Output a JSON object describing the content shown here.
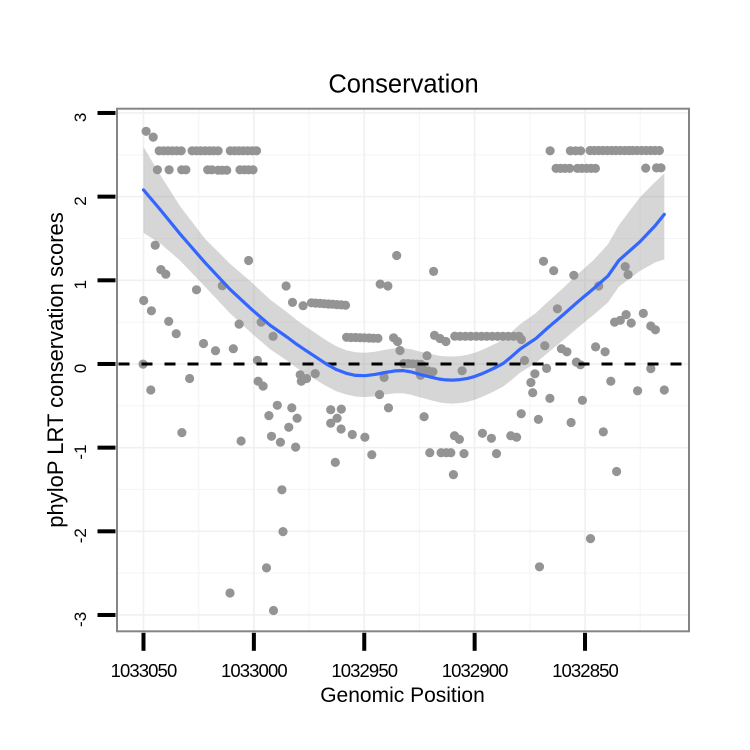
{
  "chart_data": {
    "type": "scatter",
    "title": "Conservation",
    "xlabel": "Genomic Position",
    "ylabel": "phyloP LRT conservation scores",
    "x_ticks": [
      1033050,
      1033000,
      1032950,
      1032900,
      1032850
    ],
    "y_ticks": [
      -3,
      -2,
      -1,
      0,
      1,
      2,
      3
    ],
    "x_minor": [
      1033025,
      1032975,
      1032925,
      1032875,
      1032825
    ],
    "y_minor": [
      -2.5,
      -1.5,
      -0.5,
      0.5,
      1.5,
      2.5
    ],
    "x_range": [
      1033062.0,
      1032802.9
    ],
    "y_range": [
      3.051,
      -3.195
    ],
    "x_axis_reversed": true,
    "legend": "none",
    "grid": "major+minor",
    "reference_line_y": 0,
    "points": [
      [
        1033048.8,
        2.781
      ],
      [
        1033045.6,
        2.711
      ],
      [
        1033042.9,
        2.548
      ],
      [
        1033040.9,
        2.548
      ],
      [
        1033038.9,
        2.548
      ],
      [
        1033036.9,
        2.548
      ],
      [
        1033034.9,
        2.548
      ],
      [
        1033032.9,
        2.548
      ],
      [
        1033028.0,
        2.548
      ],
      [
        1033026.0,
        2.548
      ],
      [
        1033024.1,
        2.548
      ],
      [
        1033022.1,
        2.548
      ],
      [
        1033020.1,
        2.548
      ],
      [
        1033018.2,
        2.548
      ],
      [
        1033016.2,
        2.548
      ],
      [
        1033010.7,
        2.548
      ],
      [
        1033008.7,
        2.548
      ],
      [
        1033006.8,
        2.548
      ],
      [
        1033004.8,
        2.548
      ],
      [
        1033002.8,
        2.548
      ],
      [
        1033000.8,
        2.548
      ],
      [
        1032998.8,
        2.548
      ],
      [
        1032865.8,
        2.548
      ],
      [
        1032856.6,
        2.548
      ],
      [
        1032854.3,
        2.548
      ],
      [
        1032852.0,
        2.548
      ],
      [
        1032847.7,
        2.552
      ],
      [
        1032845.8,
        2.552
      ],
      [
        1032843.8,
        2.552
      ],
      [
        1032841.9,
        2.552
      ],
      [
        1032839.9,
        2.552
      ],
      [
        1032837.9,
        2.552
      ],
      [
        1032836.0,
        2.552
      ],
      [
        1032834.0,
        2.552
      ],
      [
        1032832.0,
        2.552
      ],
      [
        1032830.1,
        2.552
      ],
      [
        1032828.5,
        2.552
      ],
      [
        1032826.5,
        2.552
      ],
      [
        1032824.4,
        2.552
      ],
      [
        1032822.4,
        2.552
      ],
      [
        1032820.3,
        2.552
      ],
      [
        1032818.3,
        2.552
      ],
      [
        1032816.3,
        2.552
      ],
      [
        1033043.7,
        2.321
      ],
      [
        1033038.4,
        2.321
      ],
      [
        1033032.7,
        2.321
      ],
      [
        1033030.8,
        2.321
      ],
      [
        1033020.9,
        2.321
      ],
      [
        1033019.0,
        2.321
      ],
      [
        1033016.2,
        2.316
      ],
      [
        1033014.3,
        2.316
      ],
      [
        1033012.3,
        2.316
      ],
      [
        1033006.3,
        2.321
      ],
      [
        1033004.3,
        2.321
      ],
      [
        1033002.4,
        2.321
      ],
      [
        1033000.4,
        2.321
      ],
      [
        1032863.1,
        2.337
      ],
      [
        1032861.1,
        2.337
      ],
      [
        1032859.1,
        2.337
      ],
      [
        1032857.0,
        2.337
      ],
      [
        1032853.4,
        2.337
      ],
      [
        1032851.4,
        2.337
      ],
      [
        1032849.3,
        2.337
      ],
      [
        1032847.3,
        2.337
      ],
      [
        1032845.3,
        2.337
      ],
      [
        1032822.5,
        2.341
      ],
      [
        1032817.6,
        2.344
      ],
      [
        1032815.6,
        2.344
      ],
      [
        1033044.7,
        1.419
      ],
      [
        1033002.4,
        1.237
      ],
      [
        1032935.3,
        1.297
      ],
      [
        1032868.8,
        1.227
      ],
      [
        1032831.8,
        1.164
      ],
      [
        1032830.5,
        1.068
      ],
      [
        1032918.6,
        1.106
      ],
      [
        1032864.2,
        1.115
      ],
      [
        1032855.1,
        1.06
      ],
      [
        1033042.1,
        1.128
      ],
      [
        1033039.9,
        1.073
      ],
      [
        1033026.0,
        0.887
      ],
      [
        1033014.3,
        0.936
      ],
      [
        1032843.8,
        0.932
      ],
      [
        1033049.9,
        0.759
      ],
      [
        1033046.4,
        0.636
      ],
      [
        1033038.6,
        0.509
      ],
      [
        1033035.2,
        0.362
      ],
      [
        1033006.7,
        0.477
      ],
      [
        1032996.7,
        0.5
      ],
      [
        1032991.3,
        0.329
      ],
      [
        1032985.4,
        0.932
      ],
      [
        1032982.5,
        0.736
      ],
      [
        1032977.7,
        0.696
      ],
      [
        1032973.9,
        0.731
      ],
      [
        1032972.0,
        0.728
      ],
      [
        1032970.0,
        0.724
      ],
      [
        1032968.1,
        0.721
      ],
      [
        1032966.2,
        0.717
      ],
      [
        1032964.3,
        0.714
      ],
      [
        1032962.4,
        0.71
      ],
      [
        1032960.4,
        0.706
      ],
      [
        1032958.5,
        0.703
      ],
      [
        1032942.8,
        0.955
      ],
      [
        1032939.3,
        0.932
      ],
      [
        1032862.5,
        0.659
      ],
      [
        1032836.6,
        0.5
      ],
      [
        1032834.0,
        0.522
      ],
      [
        1032831.4,
        0.59
      ],
      [
        1032829.1,
        0.49
      ],
      [
        1032823.6,
        0.605
      ],
      [
        1032820.2,
        0.454
      ],
      [
        1032818.1,
        0.409
      ],
      [
        1032958.0,
        0.319
      ],
      [
        1032956.0,
        0.317
      ],
      [
        1032953.9,
        0.316
      ],
      [
        1032951.9,
        0.314
      ],
      [
        1032949.9,
        0.312
      ],
      [
        1032947.8,
        0.31
      ],
      [
        1032945.8,
        0.308
      ],
      [
        1032943.8,
        0.307
      ],
      [
        1032936.7,
        0.313
      ],
      [
        1032934.9,
        0.269
      ],
      [
        1032933.8,
        0.161
      ],
      [
        1032921.6,
        0.099
      ],
      [
        1032918.2,
        0.341
      ],
      [
        1032915.7,
        0.305
      ],
      [
        1032913.0,
        0.269
      ],
      [
        1032909.0,
        0.332
      ],
      [
        1032906.6,
        0.331
      ],
      [
        1032904.2,
        0.331
      ],
      [
        1032901.8,
        0.331
      ],
      [
        1032899.3,
        0.331
      ],
      [
        1032896.9,
        0.331
      ],
      [
        1032894.5,
        0.331
      ],
      [
        1032892.0,
        0.331
      ],
      [
        1032889.6,
        0.331
      ],
      [
        1032887.2,
        0.331
      ],
      [
        1032884.8,
        0.331
      ],
      [
        1032882.3,
        0.331
      ],
      [
        1032879.9,
        0.331
      ],
      [
        1032878.8,
        0.293
      ],
      [
        1032932.2,
        0.005
      ],
      [
        1032930.2,
        0.004
      ],
      [
        1032928.1,
        0.002
      ],
      [
        1032926.1,
        -0.001
      ],
      [
        1032924.3,
        -0.005
      ],
      [
        1032924.8,
        -0.069
      ],
      [
        1032922.8,
        -0.074
      ],
      [
        1032920.9,
        -0.084
      ],
      [
        1032918.9,
        -0.094
      ],
      [
        1032924.5,
        -0.135
      ],
      [
        1032905.7,
        -0.082
      ],
      [
        1032877.4,
        0.042
      ],
      [
        1032868.2,
        0.218
      ],
      [
        1032867.4,
        -0.053
      ],
      [
        1032860.7,
        0.182
      ],
      [
        1032858.2,
        0.145
      ],
      [
        1032853.9,
        0.022
      ],
      [
        1032852.1,
        -0.01
      ],
      [
        1032845.2,
        0.204
      ],
      [
        1032840.9,
        0.145
      ],
      [
        1032838.3,
        -0.206
      ],
      [
        1032826.2,
        -0.32
      ],
      [
        1032820.2,
        -0.055
      ],
      [
        1032814.1,
        -0.311
      ],
      [
        1033050.2,
        -0.001
      ],
      [
        1033046.7,
        -0.311
      ],
      [
        1033029.1,
        -0.174
      ],
      [
        1033022.8,
        0.245
      ],
      [
        1033017.4,
        0.159
      ],
      [
        1033009.3,
        0.182
      ],
      [
        1032998.4,
        0.044
      ],
      [
        1032998.1,
        -0.206
      ],
      [
        1032995.8,
        -0.265
      ],
      [
        1032979.0,
        -0.129
      ],
      [
        1032978.5,
        -0.206
      ],
      [
        1032976.1,
        -0.174
      ],
      [
        1032972.2,
        -0.115
      ],
      [
        1032993.2,
        -0.617
      ],
      [
        1032989.4,
        -0.494
      ],
      [
        1032982.8,
        -0.525
      ],
      [
        1032980.4,
        -0.648
      ],
      [
        1032965.2,
        -0.547
      ],
      [
        1032960.4,
        -0.539
      ],
      [
        1032962.3,
        -0.648
      ],
      [
        1032965.2,
        -0.708
      ],
      [
        1032960.5,
        -0.777
      ],
      [
        1032941.0,
        -0.16
      ],
      [
        1032943.1,
        -0.366
      ],
      [
        1032939.0,
        -0.525
      ],
      [
        1032874.5,
        -0.221
      ],
      [
        1032872.7,
        -0.117
      ],
      [
        1032873.7,
        -0.343
      ],
      [
        1032865.9,
        -0.411
      ],
      [
        1032878.9,
        -0.594
      ],
      [
        1032871.1,
        -0.662
      ],
      [
        1032856.3,
        -0.699
      ],
      [
        1032851.2,
        -0.434
      ],
      [
        1032922.9,
        -0.63
      ],
      [
        1032835.7,
        -1.285
      ],
      [
        1032841.7,
        -0.812
      ],
      [
        1033032.6,
        -0.82
      ],
      [
        1033005.8,
        -0.92
      ],
      [
        1032992.0,
        -0.865
      ],
      [
        1032988.0,
        -0.935
      ],
      [
        1032984.2,
        -0.757
      ],
      [
        1032981.1,
        -0.993
      ],
      [
        1032955.4,
        -0.843
      ],
      [
        1032949.7,
        -0.875
      ],
      [
        1032963.1,
        -1.176
      ],
      [
        1032946.6,
        -1.084
      ],
      [
        1032987.3,
        -1.504
      ],
      [
        1032909.1,
        -0.857
      ],
      [
        1032906.9,
        -0.902
      ],
      [
        1032896.5,
        -0.829
      ],
      [
        1032892.4,
        -0.888
      ],
      [
        1032883.6,
        -0.857
      ],
      [
        1032881.0,
        -0.875
      ],
      [
        1032920.3,
        -1.061
      ],
      [
        1032915.2,
        -1.061
      ],
      [
        1032912.9,
        -1.061
      ],
      [
        1032910.8,
        -1.061
      ],
      [
        1032904.8,
        -1.071
      ],
      [
        1032890.1,
        -1.071
      ],
      [
        1032909.6,
        -1.322
      ],
      [
        1032986.8,
        -2.004
      ],
      [
        1032994.3,
        -2.437
      ],
      [
        1032847.5,
        -2.087
      ],
      [
        1032870.6,
        -2.424
      ],
      [
        1033010.8,
        -2.737
      ],
      [
        1032991.1,
        -2.946
      ]
    ],
    "smooth_line": [
      [
        1033050.0,
        2.08
      ],
      [
        1033042.5,
        1.847
      ],
      [
        1033033.4,
        1.554
      ],
      [
        1033022.1,
        1.21
      ],
      [
        1033010.8,
        0.893
      ],
      [
        1033000.8,
        0.648
      ],
      [
        1032992.7,
        0.463
      ],
      [
        1032985.1,
        0.324
      ],
      [
        1032980.4,
        0.232
      ],
      [
        1032976.4,
        0.16
      ],
      [
        1032971.8,
        0.081
      ],
      [
        1032967.3,
        0.002
      ],
      [
        1032962.8,
        -0.065
      ],
      [
        1032958.2,
        -0.112
      ],
      [
        1032953.9,
        -0.136
      ],
      [
        1032949.6,
        -0.14
      ],
      [
        1032945.1,
        -0.125
      ],
      [
        1032940.6,
        -0.102
      ],
      [
        1032936.1,
        -0.083
      ],
      [
        1032932.4,
        -0.079
      ],
      [
        1032928.8,
        -0.095
      ],
      [
        1032924.7,
        -0.126
      ],
      [
        1032919.5,
        -0.159
      ],
      [
        1032916.2,
        -0.18
      ],
      [
        1032913.0,
        -0.19
      ],
      [
        1032909.8,
        -0.193
      ],
      [
        1032906.6,
        -0.187
      ],
      [
        1032903.2,
        -0.172
      ],
      [
        1032899.9,
        -0.149
      ],
      [
        1032896.7,
        -0.118
      ],
      [
        1032893.5,
        -0.079
      ],
      [
        1032890.1,
        -0.036
      ],
      [
        1032886.9,
        0.009
      ],
      [
        1032884.0,
        0.073
      ],
      [
        1032879.4,
        0.178
      ],
      [
        1032872.2,
        0.306
      ],
      [
        1032866.8,
        0.433
      ],
      [
        1032860.0,
        0.585
      ],
      [
        1032853.0,
        0.749
      ],
      [
        1032846.1,
        0.901
      ],
      [
        1032839.6,
        1.053
      ],
      [
        1032834.7,
        1.238
      ],
      [
        1032825.1,
        1.461
      ],
      [
        1032818.3,
        1.65
      ],
      [
        1032814.1,
        1.788
      ]
    ],
    "ribbon": [
      [
        1033050.0,
        1.566,
        2.594
      ],
      [
        1033042.5,
        1.444,
        2.264
      ],
      [
        1033033.4,
        1.235,
        1.886
      ],
      [
        1033022.1,
        0.923,
        1.495
      ],
      [
        1033010.8,
        0.607,
        1.199
      ],
      [
        1033000.8,
        0.362,
        0.97
      ],
      [
        1032992.7,
        0.178,
        0.771
      ],
      [
        1032985.1,
        0.042,
        0.621
      ],
      [
        1032980.4,
        -0.049,
        0.521
      ],
      [
        1032976.4,
        -0.117,
        0.445
      ],
      [
        1032971.8,
        -0.191,
        0.364
      ],
      [
        1032967.3,
        -0.263,
        0.283
      ],
      [
        1032962.8,
        -0.324,
        0.214
      ],
      [
        1032958.2,
        -0.365,
        0.164
      ],
      [
        1032953.9,
        -0.389,
        0.139
      ],
      [
        1032949.6,
        -0.396,
        0.134
      ],
      [
        1032945.1,
        -0.385,
        0.147
      ],
      [
        1032940.6,
        -0.365,
        0.169
      ],
      [
        1032936.1,
        -0.35,
        0.187
      ],
      [
        1032932.4,
        -0.349,
        0.19
      ],
      [
        1032928.8,
        -0.367,
        0.176
      ],
      [
        1032924.7,
        -0.4,
        0.148
      ],
      [
        1032919.5,
        -0.435,
        0.118
      ],
      [
        1032916.2,
        -0.458,
        0.098
      ],
      [
        1032913.0,
        -0.47,
        0.09
      ],
      [
        1032909.8,
        -0.473,
        0.089
      ],
      [
        1032906.6,
        -0.467,
        0.095
      ],
      [
        1032903.2,
        -0.451,
        0.111
      ],
      [
        1032899.9,
        -0.427,
        0.135
      ],
      [
        1032896.7,
        -0.395,
        0.167
      ],
      [
        1032893.5,
        -0.355,
        0.207
      ],
      [
        1032890.1,
        -0.312,
        0.25
      ],
      [
        1032886.9,
        -0.267,
        0.298
      ],
      [
        1032884.0,
        -0.206,
        0.365
      ],
      [
        1032879.4,
        -0.106,
        0.474
      ],
      [
        1032872.2,
        0.014,
        0.61
      ],
      [
        1032866.8,
        0.135,
        0.743
      ],
      [
        1032860.0,
        0.282,
        0.905
      ],
      [
        1032853.0,
        0.44,
        1.08
      ],
      [
        1032846.1,
        0.587,
        1.243
      ],
      [
        1032839.6,
        0.736,
        1.43
      ],
      [
        1032834.7,
        0.922,
        1.657
      ],
      [
        1032825.1,
        1.112,
        1.993
      ],
      [
        1032818.3,
        1.213,
        2.174
      ],
      [
        1032814.1,
        1.25,
        2.278
      ]
    ],
    "colors": {
      "point": "#949494",
      "smooth_line": "#3366FF",
      "ribbon_fill": "#999999",
      "ribbon_opacity": 0.4,
      "reference_line": "#000000",
      "grid_major": "#F0F0F0",
      "grid_minor": "#F5F5F5",
      "panel_border": "#858585",
      "tick": "#000000",
      "text": "#000000",
      "background": "#FFFFFF"
    }
  }
}
